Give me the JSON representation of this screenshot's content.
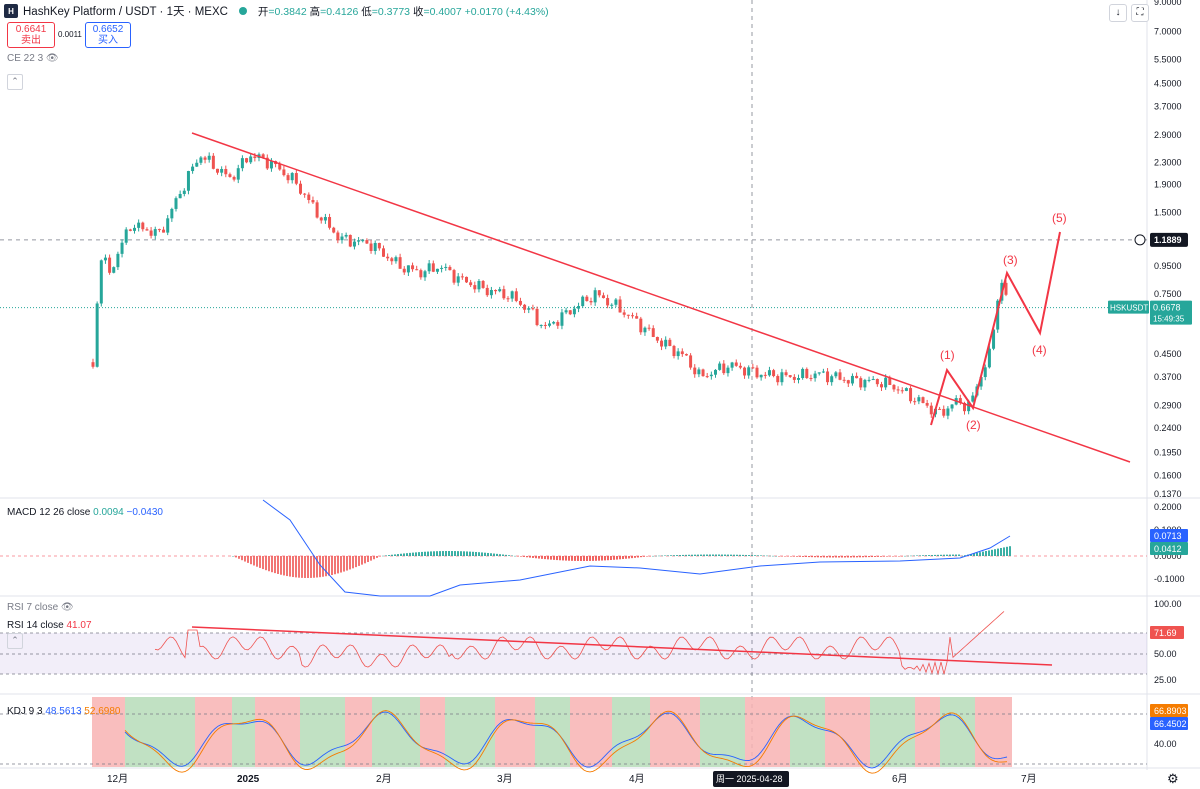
{
  "header": {
    "logo": "H",
    "title": "HashKey Platform / USDT · 1天 · MEXC",
    "open_label": "开",
    "open": "=0.3842",
    "high_label": "高",
    "high": "=0.4126",
    "low_label": "低",
    "low": "=0.3773",
    "close_label": "收",
    "close": "=0.4007",
    "change": "+0.0170 (+4.43%)"
  },
  "trade": {
    "sell_price": "0.6641",
    "sell_label": "卖出",
    "spread": "0.0011",
    "buy_price": "0.6652",
    "buy_label": "买入"
  },
  "indicators": {
    "ce": "CE 22 3",
    "macd_label": "MACD 12 26 close",
    "macd_val1": "0.0094",
    "macd_val2": "−0.0430",
    "rsi7_label": "RSI 7 close",
    "rsi14_label": "RSI 14 close",
    "rsi14_val": "41.07",
    "kdj_label": "KDJ 9 3",
    "kdj_val1": "48.5613",
    "kdj_val2": "52.6980"
  },
  "colors": {
    "up": "#26a69a",
    "down": "#ef5350",
    "line_red": "#f23645",
    "macd_blue": "#2962ff",
    "kdj_orange": "#f57c00",
    "rsi_band": "#7e57c2"
  },
  "chart_data": {
    "type": "candlestick",
    "symbol": "HSKUSDT",
    "price_axis": {
      "scale": "log",
      "ticks": [
        "9.0000",
        "7.0000",
        "5.5000",
        "4.5000",
        "3.7000",
        "2.9000",
        "2.3000",
        "1.9000",
        "1.5000",
        "0.9500",
        "0.7500",
        "0.4500",
        "0.3700",
        "0.2900",
        "0.2400",
        "0.1950",
        "0.1600",
        "0.1370"
      ],
      "crosshair_label": "1.1889",
      "last_price_label": "HSKUSDT",
      "last_price": "0.6678",
      "countdown": "15:49:35"
    },
    "x_axis": {
      "labels": [
        "12月",
        "2025",
        "2月",
        "3月",
        "4月",
        "6月",
        "7月"
      ],
      "crosshair_label": "周一 2025-04-28"
    },
    "wave_labels": [
      "(1)",
      "(2)",
      "(3)",
      "(4)",
      "(5)"
    ],
    "macd_axis": {
      "ticks": [
        "0.2000",
        "0.1000",
        "0.0000",
        "-0.1000"
      ],
      "labels": [
        "0.0713",
        "0.0412"
      ]
    },
    "rsi_axis": {
      "ticks": [
        "100.00",
        "50.00",
        "25.00"
      ],
      "label": "71.69"
    },
    "kdj_axis": {
      "ticks": [
        "40.00"
      ],
      "labels": [
        "66.8903",
        "66.4502"
      ]
    }
  }
}
